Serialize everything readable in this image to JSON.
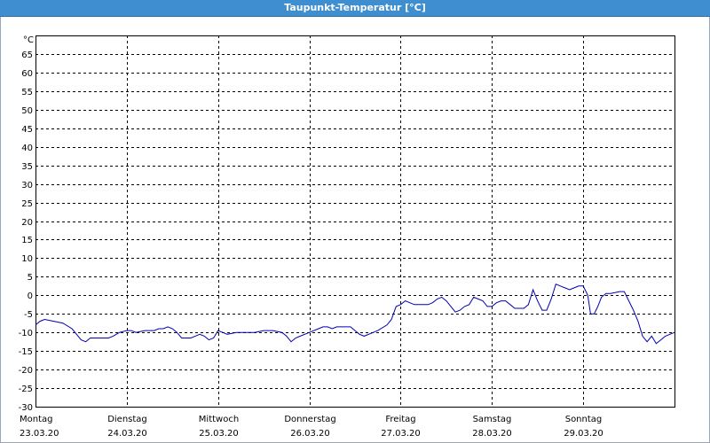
{
  "window": {
    "title": "Taupunkt-Temperatur [°C]"
  },
  "chart_data": {
    "type": "line",
    "title": "Taupunkt-Temperatur [°C]",
    "ylabel": "°C",
    "xlabel": "",
    "ylim": [
      -30,
      70
    ],
    "yticks": [
      65,
      60,
      55,
      50,
      45,
      40,
      35,
      30,
      25,
      20,
      15,
      10,
      5,
      0,
      -5,
      -10,
      -15,
      -20,
      -25,
      -30
    ],
    "xlim": [
      0,
      7
    ],
    "grid": true,
    "line_color": "#0000b0",
    "x_labels": [
      {
        "day": "Montag",
        "date": "23.03.20"
      },
      {
        "day": "Dienstag",
        "date": "24.03.20"
      },
      {
        "day": "Mittwoch",
        "date": "25.03.20"
      },
      {
        "day": "Donnerstag",
        "date": "26.03.20"
      },
      {
        "day": "Freitag",
        "date": "27.03.20"
      },
      {
        "day": "Samstag",
        "date": "28.03.20"
      },
      {
        "day": "Sonntag",
        "date": "29.03.20"
      }
    ],
    "series": [
      {
        "values": [
          [
            0.0,
            -8
          ],
          [
            0.05,
            -7
          ],
          [
            0.1,
            -6.5
          ],
          [
            0.2,
            -7
          ],
          [
            0.3,
            -7.5
          ],
          [
            0.4,
            -9
          ],
          [
            0.5,
            -12
          ],
          [
            0.55,
            -12.5
          ],
          [
            0.6,
            -11.5
          ],
          [
            0.7,
            -11.5
          ],
          [
            0.8,
            -11.5
          ],
          [
            0.85,
            -11
          ],
          [
            0.92,
            -10
          ],
          [
            1.0,
            -9.5
          ],
          [
            1.05,
            -9.5
          ],
          [
            1.1,
            -10
          ],
          [
            1.2,
            -9.5
          ],
          [
            1.3,
            -9.5
          ],
          [
            1.35,
            -9
          ],
          [
            1.4,
            -9
          ],
          [
            1.45,
            -8.5
          ],
          [
            1.5,
            -9
          ],
          [
            1.55,
            -10
          ],
          [
            1.6,
            -11.5
          ],
          [
            1.7,
            -11.5
          ],
          [
            1.75,
            -11
          ],
          [
            1.8,
            -10.5
          ],
          [
            1.85,
            -11
          ],
          [
            1.9,
            -12
          ],
          [
            1.95,
            -11.5
          ],
          [
            2.0,
            -9.5
          ],
          [
            2.05,
            -10
          ],
          [
            2.1,
            -10.5
          ],
          [
            2.2,
            -10
          ],
          [
            2.3,
            -10
          ],
          [
            2.4,
            -10
          ],
          [
            2.5,
            -9.5
          ],
          [
            2.6,
            -9.5
          ],
          [
            2.7,
            -10
          ],
          [
            2.75,
            -11
          ],
          [
            2.8,
            -12.5
          ],
          [
            2.85,
            -11.5
          ],
          [
            2.9,
            -11
          ],
          [
            3.0,
            -10
          ],
          [
            3.1,
            -9
          ],
          [
            3.15,
            -8.5
          ],
          [
            3.2,
            -8.5
          ],
          [
            3.25,
            -9
          ],
          [
            3.3,
            -8.5
          ],
          [
            3.4,
            -8.5
          ],
          [
            3.45,
            -8.5
          ],
          [
            3.5,
            -9.5
          ],
          [
            3.55,
            -10.5
          ],
          [
            3.6,
            -11
          ],
          [
            3.7,
            -10
          ],
          [
            3.75,
            -9.5
          ],
          [
            3.85,
            -8
          ],
          [
            3.9,
            -6.5
          ],
          [
            3.95,
            -3
          ],
          [
            4.0,
            -2.5
          ],
          [
            4.05,
            -1.5
          ],
          [
            4.1,
            -2
          ],
          [
            4.15,
            -2.5
          ],
          [
            4.2,
            -2.5
          ],
          [
            4.3,
            -2.5
          ],
          [
            4.35,
            -2
          ],
          [
            4.4,
            -1
          ],
          [
            4.45,
            -0.5
          ],
          [
            4.5,
            -1.5
          ],
          [
            4.55,
            -3
          ],
          [
            4.6,
            -4.5
          ],
          [
            4.65,
            -4
          ],
          [
            4.7,
            -3
          ],
          [
            4.75,
            -2.5
          ],
          [
            4.8,
            -0.5
          ],
          [
            4.85,
            -1
          ],
          [
            4.9,
            -1.5
          ],
          [
            4.95,
            -3
          ],
          [
            5.0,
            -3
          ],
          [
            5.05,
            -2
          ],
          [
            5.1,
            -1.5
          ],
          [
            5.15,
            -1.5
          ],
          [
            5.2,
            -2.5
          ],
          [
            5.25,
            -3.5
          ],
          [
            5.3,
            -3.5
          ],
          [
            5.35,
            -3.5
          ],
          [
            5.4,
            -2.5
          ],
          [
            5.45,
            1.5
          ],
          [
            5.5,
            -1.5
          ],
          [
            5.55,
            -4
          ],
          [
            5.6,
            -4
          ],
          [
            5.65,
            -1
          ],
          [
            5.7,
            3
          ],
          [
            5.75,
            2.5
          ],
          [
            5.8,
            2
          ],
          [
            5.85,
            1.5
          ],
          [
            5.9,
            2
          ],
          [
            5.95,
            2.5
          ],
          [
            6.0,
            2.5
          ],
          [
            6.05,
            0
          ],
          [
            6.08,
            -5
          ],
          [
            6.12,
            -5
          ],
          [
            6.16,
            -3
          ],
          [
            6.2,
            -0.5
          ],
          [
            6.25,
            0.5
          ],
          [
            6.3,
            0.5
          ],
          [
            6.4,
            1
          ],
          [
            6.45,
            1
          ],
          [
            6.55,
            -4
          ],
          [
            6.6,
            -7
          ],
          [
            6.65,
            -11
          ],
          [
            6.7,
            -12.5
          ],
          [
            6.75,
            -11
          ],
          [
            6.8,
            -13
          ],
          [
            6.85,
            -12
          ],
          [
            6.9,
            -11
          ],
          [
            6.95,
            -10.5
          ],
          [
            7.0,
            -10
          ]
        ]
      }
    ]
  }
}
